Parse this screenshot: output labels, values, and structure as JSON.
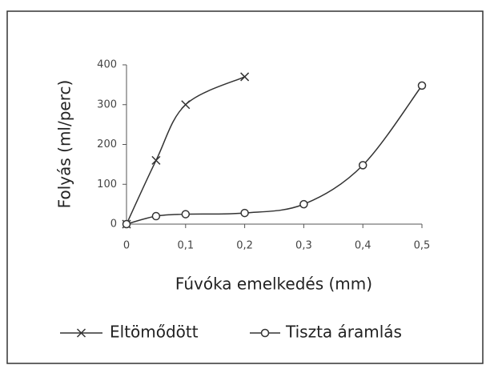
{
  "chart_data": {
    "type": "line",
    "y_label": "Folyás (ml/perc)",
    "x_label": "Fúvóka emelkedés (mm)",
    "series": [
      {
        "name": "Eltömődött",
        "color": "#333333",
        "marker": "x",
        "x": [
          0,
          0.05,
          0.1,
          0.2
        ],
        "values": [
          0,
          160,
          300,
          370
        ]
      },
      {
        "name": "Tiszta áramlás",
        "color": "#333333",
        "marker": "o",
        "x": [
          0,
          0.05,
          0.1,
          0.2,
          0.3,
          0.4,
          0.5
        ],
        "values": [
          0,
          20,
          25,
          28,
          50,
          148,
          348
        ]
      }
    ],
    "xlim": [
      0,
      0.5
    ],
    "xticks": [
      0,
      {
        "value": 0.1,
        "label": "0,1"
      },
      {
        "value": 0.2,
        "label": "0,2"
      },
      {
        "value": 0.3,
        "label": "0,3"
      },
      {
        "value": 0.4,
        "label": "0,4"
      },
      {
        "value": 0.5,
        "label": "0,5"
      }
    ],
    "ylim": [
      0,
      400
    ],
    "yticks": [
      0,
      100,
      200,
      300,
      400
    ],
    "grid": false
  }
}
